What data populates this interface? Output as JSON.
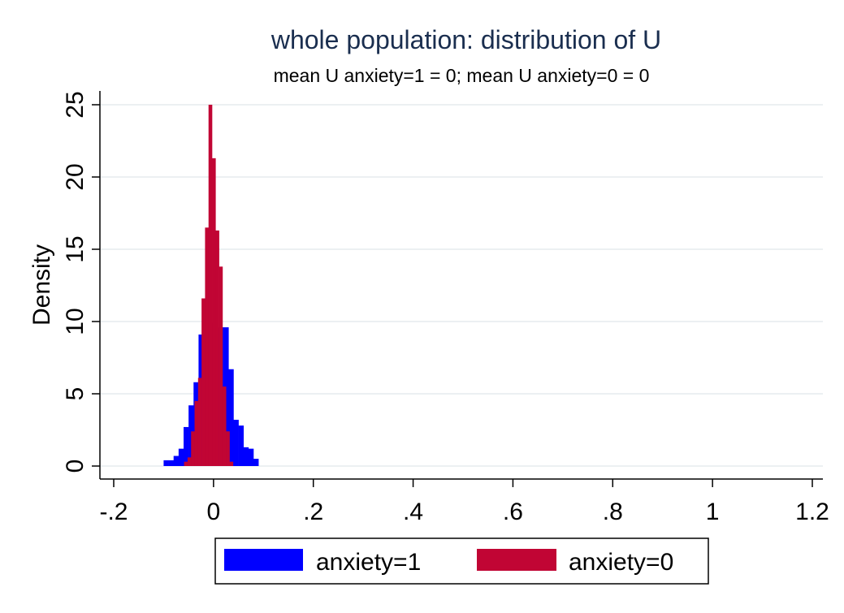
{
  "chart_data": {
    "type": "bar",
    "title": "whole population: distribution of U",
    "subtitle": "mean U anxiety=1 = 0; mean U anxiety=0 = 0",
    "xlabel": "",
    "ylabel": "Density",
    "xlim": [
      -0.2,
      1.2
    ],
    "ylim": [
      0,
      25
    ],
    "xticks": [
      -0.2,
      0,
      0.2,
      0.4,
      0.6,
      0.8,
      1,
      1.2
    ],
    "xtick_labels": [
      "-.2",
      "0",
      ".2",
      ".4",
      ".6",
      ".8",
      "1",
      "1.2"
    ],
    "yticks": [
      0,
      5,
      10,
      15,
      20,
      25
    ],
    "ytick_labels": [
      "0",
      "5",
      "10",
      "15",
      "20",
      "25"
    ],
    "grid": true,
    "legend_position": "bottom",
    "series": [
      {
        "name": "anxiety=1",
        "color": "#0000ff",
        "bin_width": 0.01,
        "bins": [
          [
            -0.1,
            0.4
          ],
          [
            -0.09,
            0.4
          ],
          [
            -0.08,
            0.7
          ],
          [
            -0.07,
            1.2
          ],
          [
            -0.06,
            2.7
          ],
          [
            -0.05,
            4.2
          ],
          [
            -0.04,
            5.8
          ],
          [
            -0.03,
            9.1
          ],
          [
            -0.02,
            9.6
          ],
          [
            -0.01,
            9.9
          ],
          [
            0.0,
            10.1
          ],
          [
            0.01,
            9.6
          ],
          [
            0.02,
            9.6
          ],
          [
            0.03,
            6.7
          ],
          [
            0.04,
            3.2
          ],
          [
            0.05,
            2.8
          ],
          [
            0.06,
            1.3
          ],
          [
            0.07,
            1.2
          ],
          [
            0.08,
            0.5
          ]
        ]
      },
      {
        "name": "anxiety=0",
        "color": "#c10534",
        "bin_width": 0.007,
        "bins": [
          [
            -0.059,
            0.3
          ],
          [
            -0.052,
            0.6
          ],
          [
            -0.045,
            2.4
          ],
          [
            -0.038,
            4.5
          ],
          [
            -0.031,
            6.1
          ],
          [
            -0.024,
            11.6
          ],
          [
            -0.017,
            16.5
          ],
          [
            -0.01,
            25.0
          ],
          [
            -0.003,
            21.3
          ],
          [
            0.004,
            16.3
          ],
          [
            0.011,
            13.8
          ],
          [
            0.018,
            5.5
          ],
          [
            0.025,
            2.4
          ],
          [
            0.032,
            0.3
          ]
        ]
      }
    ]
  }
}
